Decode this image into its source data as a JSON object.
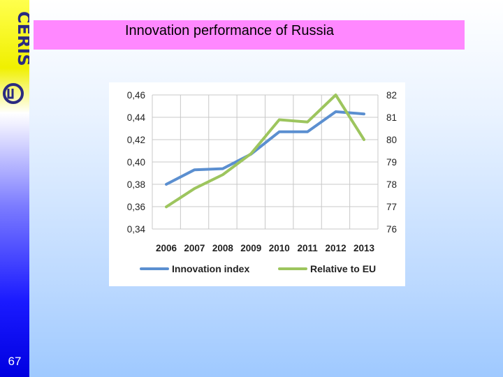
{
  "slide": {
    "title": "Innovation performance of Russia",
    "page_number": "67"
  },
  "logo": {
    "text": "CERIS",
    "icon": "ceris-logo"
  },
  "colors": {
    "title_bar": "#ff88ff",
    "innovation_index": "#5b8fd0",
    "relative_to_eu": "#9dc55e"
  },
  "chart_data": {
    "type": "line",
    "x": [
      "2006",
      "2007",
      "2008",
      "2009",
      "2010",
      "2011",
      "2012",
      "2013"
    ],
    "series": [
      {
        "name": "Innovation index",
        "axis": "left",
        "color": "#5b8fd0",
        "values": [
          0.38,
          0.393,
          0.394,
          0.407,
          0.427,
          0.427,
          0.445,
          0.443
        ]
      },
      {
        "name": "Relative to EU",
        "axis": "right",
        "color": "#9dc55e",
        "values": [
          76.99,
          77.81,
          78.43,
          79.37,
          80.89,
          80.79,
          82.0,
          80.0
        ]
      }
    ],
    "ylim_left": [
      0.34,
      0.46
    ],
    "yticks_left": [
      "0,34",
      "0,36",
      "0,38",
      "0,40",
      "0,42",
      "0,44",
      "0,46"
    ],
    "ylim_right": [
      76,
      82
    ],
    "yticks_right": [
      "76",
      "77",
      "78",
      "79",
      "80",
      "81",
      "82"
    ],
    "grid": true,
    "legend_position": "bottom"
  }
}
